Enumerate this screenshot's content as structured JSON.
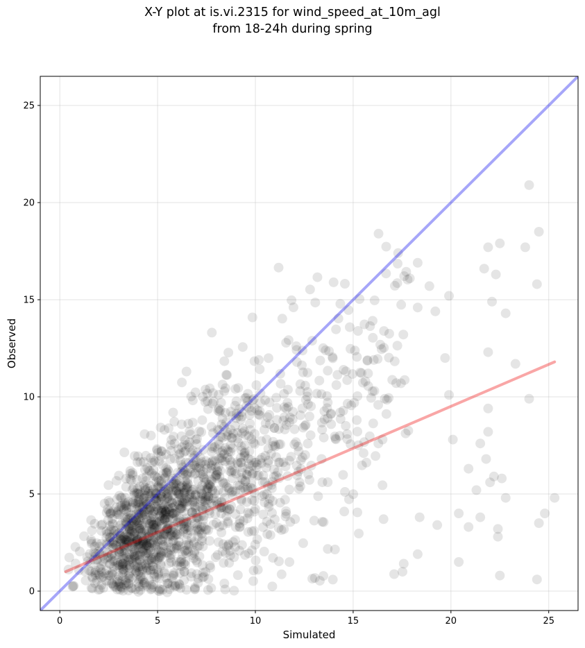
{
  "title_lines": [
    "X-Y plot at is.vi.2315 for wind_speed_at_10m_agl",
    "from 18-24h during spring"
  ],
  "chart_data": {
    "type": "scatter",
    "title": "X-Y plot at is.vi.2315 for wind_speed_at_10m_agl\nfrom 18-24h during spring",
    "xlabel": "Simulated",
    "ylabel": "Observed",
    "xlim": [
      -1,
      26.5
    ],
    "ylim": [
      -1,
      26.5
    ],
    "xticks": [
      0,
      5,
      10,
      15,
      20,
      25
    ],
    "yticks": [
      0,
      5,
      10,
      15,
      20,
      25
    ],
    "grid": true,
    "legend": "none",
    "point_color": "#000000",
    "point_alpha": 0.1,
    "outlier_points": [
      [
        24.0,
        20.9
      ],
      [
        24.5,
        18.5
      ],
      [
        23.8,
        17.7
      ],
      [
        22.5,
        17.9
      ],
      [
        21.9,
        17.7
      ],
      [
        21.7,
        16.6
      ],
      [
        22.3,
        16.3
      ],
      [
        24.4,
        15.8
      ],
      [
        22.1,
        14.9
      ],
      [
        22.8,
        14.3
      ],
      [
        23.3,
        11.7
      ],
      [
        21.9,
        12.3
      ],
      [
        24.0,
        9.9
      ],
      [
        21.9,
        9.4
      ],
      [
        21.9,
        8.2
      ],
      [
        21.5,
        7.6
      ],
      [
        21.8,
        6.8
      ],
      [
        20.9,
        6.3
      ],
      [
        21.3,
        5.2
      ],
      [
        22.0,
        5.6
      ],
      [
        22.2,
        5.9
      ],
      [
        22.6,
        5.8
      ],
      [
        22.8,
        4.8
      ],
      [
        21.5,
        3.8
      ],
      [
        22.4,
        3.2
      ],
      [
        22.4,
        2.8
      ],
      [
        20.9,
        3.3
      ],
      [
        20.4,
        4.0
      ],
      [
        19.3,
        3.4
      ],
      [
        20.4,
        1.5
      ],
      [
        22.5,
        0.8
      ],
      [
        24.4,
        0.6
      ],
      [
        24.5,
        3.5
      ],
      [
        24.8,
        4.0
      ],
      [
        25.3,
        4.8
      ],
      [
        19.9,
        15.2
      ],
      [
        19.7,
        12.0
      ],
      [
        19.9,
        10.1
      ],
      [
        20.1,
        7.8
      ],
      [
        18.9,
        15.7
      ],
      [
        19.2,
        14.4
      ],
      [
        18.3,
        16.9
      ],
      [
        17.3,
        17.4
      ],
      [
        16.3,
        18.4
      ],
      [
        17.9,
        16.1
      ],
      [
        18.3,
        14.6
      ],
      [
        18.3,
        1.9
      ],
      [
        18.4,
        3.8
      ]
    ],
    "dense_cloud": {
      "seed": 2315,
      "count": 1650,
      "x_range": [
        0.3,
        18.0
      ],
      "note": "points concentrated near x 4-8, y 1-5, spreading to x 18, y 16"
    },
    "series": [
      {
        "name": "",
        "kind": "reference_line",
        "color": "#0000ee",
        "alpha": 0.35,
        "points": [
          [
            -1,
            -1
          ],
          [
            26.5,
            26.5
          ]
        ]
      },
      {
        "name": "",
        "kind": "regression_fit",
        "color": "#ee0000",
        "alpha": 0.35,
        "points": [
          [
            0.3,
            1.0
          ],
          [
            25.3,
            11.8
          ]
        ]
      }
    ]
  }
}
